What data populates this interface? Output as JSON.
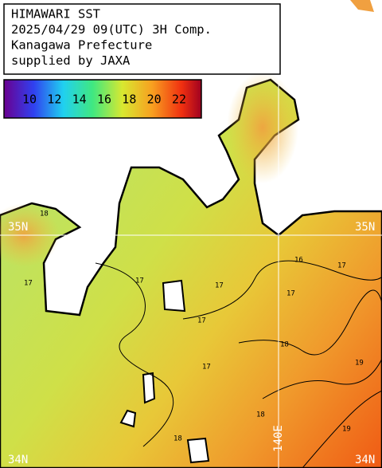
{
  "header": {
    "lines": [
      "HIMAWARI SST",
      "2025/04/29 09(UTC) 3H Comp.",
      "Kanagawa Prefecture",
      "supplied by JAXA"
    ]
  },
  "colorbar": {
    "ticks": [
      10,
      12,
      14,
      16,
      18,
      20,
      22
    ]
  },
  "grid_labels": {
    "lat_top": "35N",
    "lat_bottom": "34N",
    "lon": "140E"
  },
  "contour_labels": [
    "18",
    "17",
    "17",
    "17",
    "17",
    "17",
    "16",
    "17",
    "17",
    "18",
    "18",
    "19",
    "19",
    "18"
  ]
}
